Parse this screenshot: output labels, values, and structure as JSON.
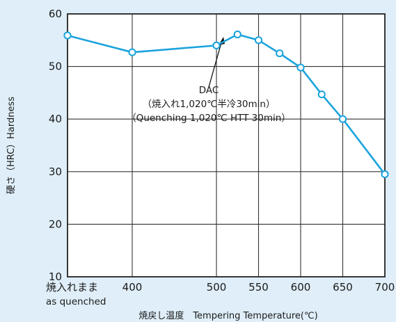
{
  "chart_data": {
    "type": "line",
    "title": "",
    "xlabel": "焼戻し温度　Tempering Temperature(℃)",
    "ylabel": "硬さ（HRC）Hardness",
    "x_tick_labels": [
      {
        "x": 0,
        "label": "焼入れまま",
        "sub": "as quenched"
      },
      {
        "x": 400,
        "label": "400"
      },
      {
        "x": 500,
        "label": "500"
      },
      {
        "x": 550,
        "label": "550"
      },
      {
        "x": 600,
        "label": "600"
      },
      {
        "x": 650,
        "label": "650"
      },
      {
        "x": 700,
        "label": "700"
      }
    ],
    "y_ticks": [
      10,
      20,
      30,
      40,
      50,
      60
    ],
    "ylim": [
      10,
      60
    ],
    "x_scale_note": "irregular: first tick is as-quenched state, then 400-700",
    "grid": true,
    "series": [
      {
        "name": "",
        "color": "#1aa3dd",
        "points": [
          {
            "x": "as quenched",
            "y": 55.9
          },
          {
            "x": 400,
            "y": 52.7
          },
          {
            "x": 500,
            "y": 54.0
          },
          {
            "x": 525,
            "y": 56.1
          },
          {
            "x": 550,
            "y": 55.0
          },
          {
            "x": 575,
            "y": 52.5
          },
          {
            "x": 600,
            "y": 49.8
          },
          {
            "x": 625,
            "y": 44.7
          },
          {
            "x": 650,
            "y": 40.0
          },
          {
            "x": 700,
            "y": 29.5
          }
        ]
      }
    ],
    "annotation": {
      "lines": [
        "DAC",
        "（焼入れ1,020℃半冷30min）",
        "（Quenching 1,020℃ HTT 30min）"
      ]
    }
  }
}
